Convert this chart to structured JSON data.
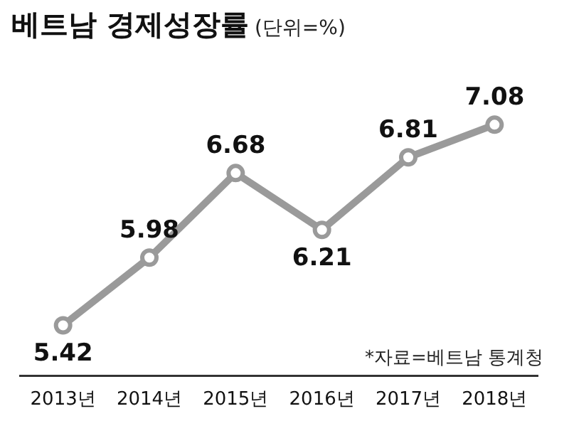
{
  "chart_data": {
    "type": "line",
    "title": "베트남 경제성장률",
    "subtitle": "(단위=%)",
    "categories": [
      "2013년",
      "2014년",
      "2015년",
      "2016년",
      "2017년",
      "2018년"
    ],
    "series": [
      {
        "color": "#9a9a9a",
        "values": [
          5.42,
          5.98,
          6.68,
          6.21,
          6.81,
          7.08
        ]
      }
    ],
    "data_labels": true,
    "marker": "circle",
    "line_style": "solid",
    "grid": false,
    "legend": false,
    "annotations": [
      "*자료=베트남 통계청"
    ]
  }
}
